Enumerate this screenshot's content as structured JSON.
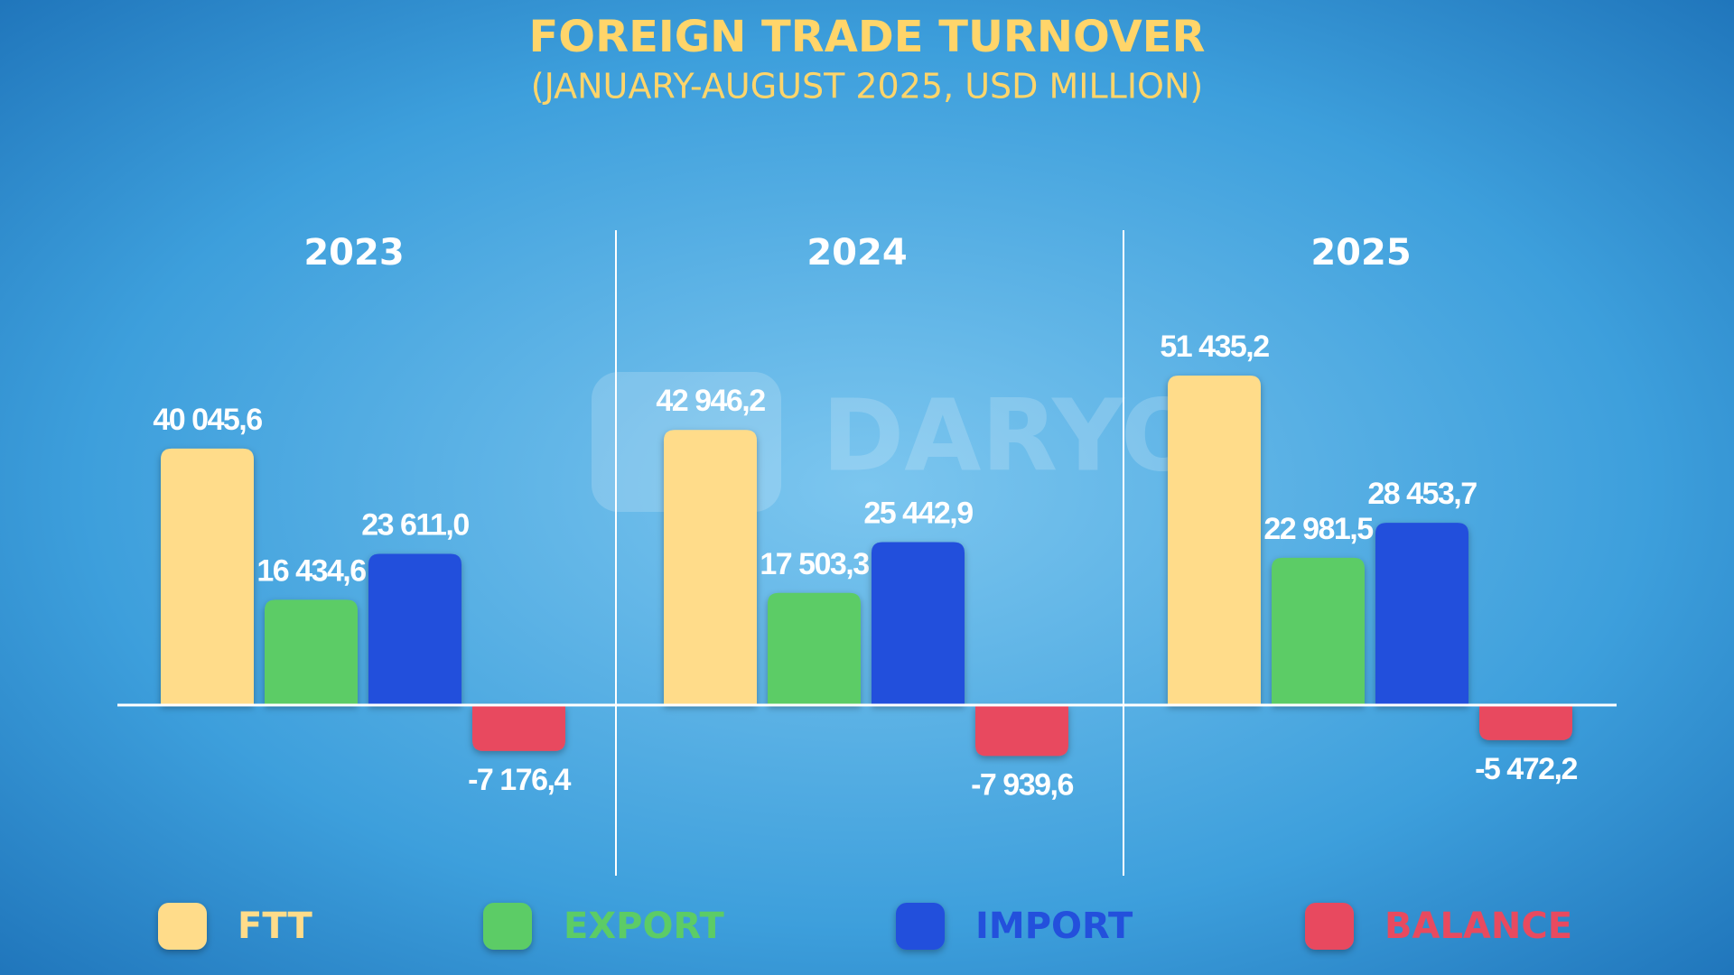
{
  "chart_data": {
    "type": "bar",
    "title": "FOREIGN TRADE TURNOVER",
    "subtitle": "(JANUARY-AUGUST 2025, USD MILLION)",
    "categories": [
      "2023",
      "2024",
      "2025"
    ],
    "series": [
      {
        "name": "FTT",
        "color": "#ffdc8a",
        "values": [
          40045.6,
          42946.2,
          51435.2
        ],
        "value_labels": [
          "40 045,6",
          "42 946,2",
          "51 435,2"
        ]
      },
      {
        "name": "EXPORT",
        "color": "#5ccc66",
        "values": [
          16434.6,
          17503.3,
          22981.5
        ],
        "value_labels": [
          "16 434,6",
          "17 503,3",
          "22 981,5"
        ]
      },
      {
        "name": "IMPORT",
        "color": "#2350dc",
        "values": [
          23611.0,
          25442.9,
          28453.7
        ],
        "value_labels": [
          "23 611,0",
          "25 442,9",
          "28 453,7"
        ]
      },
      {
        "name": "BALANCE",
        "color": "#e84a5f",
        "values": [
          -7176.4,
          -7939.6,
          -5472.2
        ],
        "value_labels": [
          "-7 176,4",
          "-7 939,6",
          "-5 472,2"
        ]
      }
    ],
    "legend": "bottom"
  },
  "watermark": "DARYO"
}
